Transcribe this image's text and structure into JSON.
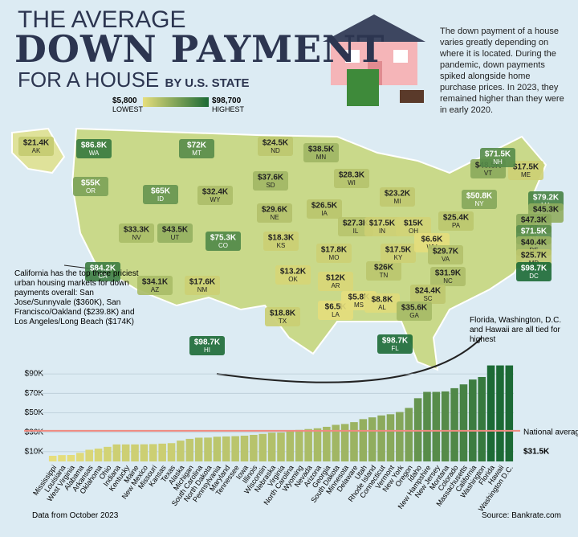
{
  "header": {
    "title_line1": "THE AVERAGE",
    "title_line2": "DOWN PAYMENT",
    "title_line3": "FOR A HOUSE",
    "title_suffix": "BY U.S. STATE",
    "description": "The down payment of a house varies greatly depending on where it is located. During the pandemic, down payments spiked alongside home purchase prices. In 2023, they remained higher than they were in early 2020."
  },
  "legend": {
    "min": {
      "value": 5.8,
      "label": "$5,800"
    },
    "max": {
      "value": 98.7,
      "label": "$98,700"
    },
    "low_text": "LOWEST",
    "high_text": "HIGHEST",
    "low_color": "#e6de7c",
    "high_color": "#1c6a35"
  },
  "map": {
    "states": [
      {
        "abbr": "AK",
        "value": 21.4,
        "value_label": "$21.4K"
      },
      {
        "abbr": "WA",
        "value": 86.8,
        "value_label": "$86.8K"
      },
      {
        "abbr": "OR",
        "value": 55,
        "value_label": "$55K"
      },
      {
        "abbr": "CA",
        "value": 84.2,
        "value_label": "$84.2K"
      },
      {
        "abbr": "NV",
        "value": 33.3,
        "value_label": "$33.3K"
      },
      {
        "abbr": "ID",
        "value": 65,
        "value_label": "$65K"
      },
      {
        "abbr": "MT",
        "value": 72,
        "value_label": "$72K"
      },
      {
        "abbr": "WY",
        "value": 32.4,
        "value_label": "$32.4K"
      },
      {
        "abbr": "UT",
        "value": 43.5,
        "value_label": "$43.5K"
      },
      {
        "abbr": "AZ",
        "value": 34.1,
        "value_label": "$34.1K"
      },
      {
        "abbr": "CO",
        "value": 75.3,
        "value_label": "$75.3K"
      },
      {
        "abbr": "NM",
        "value": 17.6,
        "value_label": "$17.6K"
      },
      {
        "abbr": "ND",
        "value": 24.5,
        "value_label": "$24.5K"
      },
      {
        "abbr": "SD",
        "value": 37.6,
        "value_label": "$37.6K"
      },
      {
        "abbr": "NE",
        "value": 29.6,
        "value_label": "$29.6K"
      },
      {
        "abbr": "KS",
        "value": 18.3,
        "value_label": "$18.3K"
      },
      {
        "abbr": "OK",
        "value": 13.2,
        "value_label": "$13.2K"
      },
      {
        "abbr": "TX",
        "value": 18.8,
        "value_label": "$18.8K"
      },
      {
        "abbr": "MN",
        "value": 38.5,
        "value_label": "$38.5K"
      },
      {
        "abbr": "WI",
        "value": 28.3,
        "value_label": "$28.3K"
      },
      {
        "abbr": "IA",
        "value": 26.5,
        "value_label": "$26.5K"
      },
      {
        "abbr": "IL",
        "value": 27.3,
        "value_label": "$27.3K"
      },
      {
        "abbr": "MO",
        "value": 17.8,
        "value_label": "$17.8K"
      },
      {
        "abbr": "AR",
        "value": 12,
        "value_label": "$12K"
      },
      {
        "abbr": "LA",
        "value": 6.5,
        "value_label": "$6.5K"
      },
      {
        "abbr": "MS",
        "value": 5.8,
        "value_label": "$5.8K"
      },
      {
        "abbr": "AL",
        "value": 8.8,
        "value_label": "$8.8K"
      },
      {
        "abbr": "TN",
        "value": 26,
        "value_label": "$26K"
      },
      {
        "abbr": "KY",
        "value": 17.5,
        "value_label": "$17.5K"
      },
      {
        "abbr": "IN",
        "value": 17.5,
        "value_label": "$17.5K"
      },
      {
        "abbr": "OH",
        "value": 15,
        "value_label": "$15K"
      },
      {
        "abbr": "MI",
        "value": 23.2,
        "value_label": "$23.2K"
      },
      {
        "abbr": "WV",
        "value": 6.6,
        "value_label": "$6.6K"
      },
      {
        "abbr": "VA",
        "value": 29.7,
        "value_label": "$29.7K"
      },
      {
        "abbr": "NC",
        "value": 31.9,
        "value_label": "$31.9K"
      },
      {
        "abbr": "SC",
        "value": 24.4,
        "value_label": "$24.4K"
      },
      {
        "abbr": "GA",
        "value": 35.6,
        "value_label": "$35.6K"
      },
      {
        "abbr": "FL",
        "value": 98.7,
        "value_label": "$98.7K"
      },
      {
        "abbr": "PA",
        "value": 25.4,
        "value_label": "$25.4K"
      },
      {
        "abbr": "NY",
        "value": 50.8,
        "value_label": "$50.8K"
      },
      {
        "abbr": "ME",
        "value": 17.5,
        "value_label": "$17.5K"
      },
      {
        "abbr": "VT",
        "value": 48.5,
        "value_label": "$48.5K"
      },
      {
        "abbr": "NH",
        "value": 71.5,
        "value_label": "$71.5K"
      },
      {
        "abbr": "MA",
        "value": 79.2,
        "value_label": "$79.2K"
      },
      {
        "abbr": "RI",
        "value": 45.3,
        "value_label": "$45.3K"
      },
      {
        "abbr": "CT",
        "value": 47.3,
        "value_label": "$47.3K"
      },
      {
        "abbr": "NJ",
        "value": 71.5,
        "value_label": "$71.5K"
      },
      {
        "abbr": "DE",
        "value": 40.4,
        "value_label": "$40.4K"
      },
      {
        "abbr": "MD",
        "value": 25.7,
        "value_label": "$25.7K"
      },
      {
        "abbr": "DC",
        "value": 98.7,
        "value_label": "$98.7K"
      },
      {
        "abbr": "HI",
        "value": 98.7,
        "value_label": "$98.7K"
      }
    ],
    "annotation_ca": "California has the top three priciest urban housing markets for down payments overall: San Jose/Sunnyvale ($360K), San Francisco/Oakland ($239.8K) and Los Angeles/Long Beach ($174K)",
    "annotation_fl": "Florida, Washington, D.C. and Hawaii are all tied for highest"
  },
  "chart_data": {
    "type": "bar",
    "categories": [
      "Mississippi",
      "Louisiana",
      "West Virginia",
      "Alabama",
      "Arkansas",
      "Oklahoma",
      "Ohio",
      "Indiana",
      "Kentucky",
      "Maine",
      "New Mexico",
      "Missouri",
      "Kansas",
      "Texas",
      "Alaska",
      "Michigan",
      "South Carolina",
      "North Dakota",
      "Pennsylvania",
      "Maryland",
      "Tennessee",
      "Iowa",
      "Illinois",
      "Wisconsin",
      "Nebraska",
      "Virginia",
      "North Carolina",
      "Wyoming",
      "Nevada",
      "Arizona",
      "Georgia",
      "South Dakota",
      "Minnesota",
      "Delaware",
      "Utah",
      "Rhode Island",
      "Connecticut",
      "Vermont",
      "New York",
      "Oregon",
      "Idaho",
      "New Hampshire",
      "New Jersey",
      "Montana",
      "Colorado",
      "Massachusetts",
      "California",
      "Washington",
      "Florida",
      "Hawaii",
      "Washington D.C."
    ],
    "values": [
      5.8,
      6.5,
      6.6,
      8.8,
      12,
      13.2,
      15,
      17.5,
      17.5,
      17.5,
      17.6,
      17.8,
      18.3,
      18.8,
      21.4,
      23.2,
      24.4,
      24.5,
      25.4,
      25.7,
      26,
      26.5,
      27.3,
      28.3,
      29.6,
      29.7,
      31.9,
      32.4,
      33.3,
      34.1,
      35.6,
      37.6,
      38.5,
      40.4,
      43.5,
      45.3,
      47.3,
      48.5,
      50.8,
      55,
      65,
      71.5,
      71.5,
      72,
      75.3,
      79.2,
      84.2,
      86.8,
      98.7,
      98.7,
      98.7
    ],
    "ylim": [
      0,
      100
    ],
    "yticks": [
      {
        "value": 10,
        "label": "$10K"
      },
      {
        "value": 30,
        "label": "$30K"
      },
      {
        "value": 50,
        "label": "$50K"
      },
      {
        "value": 70,
        "label": "$70K"
      },
      {
        "value": 90,
        "label": "$90K"
      }
    ],
    "grid": true,
    "average": {
      "value": 31.5,
      "label": "National average:",
      "value_label": "$31.5K",
      "color": "#f08a80"
    },
    "note": "Data from October 2023",
    "source": "Source: Bankrate.com"
  }
}
